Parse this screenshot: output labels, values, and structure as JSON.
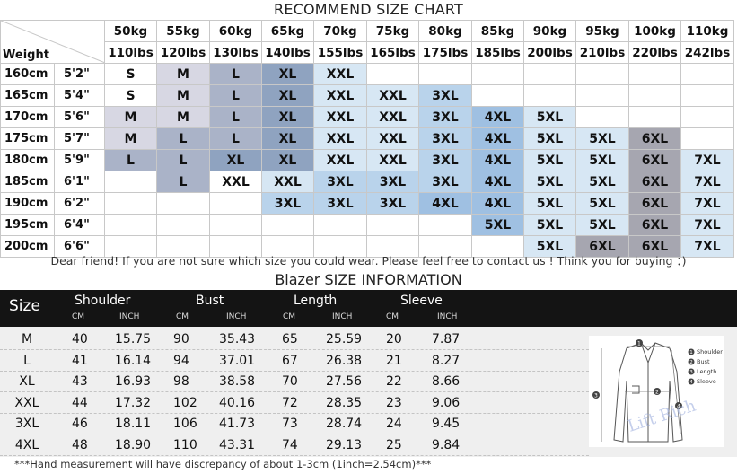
{
  "recommend_chart": {
    "title": "RECOMMEND SIZE CHART",
    "corner_label": "Weight",
    "weights_kg": [
      "50kg",
      "55kg",
      "60kg",
      "65kg",
      "70kg",
      "75kg",
      "80kg",
      "85kg",
      "90kg",
      "95kg",
      "100kg",
      "110kg"
    ],
    "weights_lbs": [
      "110lbs",
      "120lbs",
      "130lbs",
      "140lbs",
      "155lbs",
      "165lbs",
      "175lbs",
      "185lbs",
      "200lbs",
      "210lbs",
      "220lbs",
      "242lbs"
    ],
    "rows": [
      {
        "cm": "160cm",
        "ft": "5'2\"",
        "cells": [
          "S",
          "M",
          "L",
          "XL",
          "XXL",
          "",
          "",
          "",
          "",
          "",
          "",
          ""
        ]
      },
      {
        "cm": "165cm",
        "ft": "5'4\"",
        "cells": [
          "S",
          "M",
          "L",
          "XL",
          "XXL",
          "XXL",
          "3XL",
          "",
          "",
          "",
          "",
          ""
        ]
      },
      {
        "cm": "170cm",
        "ft": "5'6\"",
        "cells": [
          "M",
          "M",
          "L",
          "XL",
          "XXL",
          "XXL",
          "3XL",
          "4XL",
          "5XL",
          "",
          "",
          ""
        ]
      },
      {
        "cm": "175cm",
        "ft": "5'7\"",
        "cells": [
          "M",
          "L",
          "L",
          "XL",
          "XXL",
          "XXL",
          "3XL",
          "4XL",
          "5XL",
          "5XL",
          "6XL",
          ""
        ]
      },
      {
        "cm": "180cm",
        "ft": "5'9\"",
        "cells": [
          "L",
          "L",
          "XL",
          "XL",
          "XXL",
          "XXL",
          "3XL",
          "4XL",
          "5XL",
          "5XL",
          "6XL",
          "7XL"
        ]
      },
      {
        "cm": "185cm",
        "ft": "6'1\"",
        "cells": [
          "",
          "L",
          "XXL",
          "XXL",
          "3XL",
          "3XL",
          "3XL",
          "4XL",
          "5XL",
          "5XL",
          "6XL",
          "7XL"
        ]
      },
      {
        "cm": "190cm",
        "ft": "6'2\"",
        "cells": [
          "",
          "",
          "",
          "3XL",
          "3XL",
          "3XL",
          "4XL",
          "4XL",
          "5XL",
          "5XL",
          "6XL",
          "7XL"
        ]
      },
      {
        "cm": "195cm",
        "ft": "6'4\"",
        "cells": [
          "",
          "",
          "",
          "",
          "",
          "",
          "",
          "5XL",
          "5XL",
          "5XL",
          "6XL",
          "7XL"
        ]
      },
      {
        "cm": "200cm",
        "ft": "6'6\"",
        "cells": [
          "",
          "",
          "",
          "",
          "",
          "",
          "",
          "",
          "5XL",
          "6XL",
          "6XL",
          "7XL"
        ]
      }
    ],
    "colors": {
      "c1": "#d7d7e3",
      "c2": "#aab3c8",
      "c3": "#8fa3c0",
      "c4": "#d6e6f3",
      "c5": "#b9d3eb",
      "c6": "#9fc0e2",
      "c7": "#d7e7f4",
      "c8": "#a6a6b0"
    },
    "note": "Dear friend! If you are not sure which size you could wear. Please feel free to contact us ! Think you for buying ：)"
  },
  "blazer": {
    "title": "Blazer SIZE INFORMATION",
    "size_header": "Size",
    "groups": [
      "Shoulder",
      "Bust",
      "Length",
      "Sleeve"
    ],
    "unit_cm": "CM",
    "unit_inch": "INCH",
    "rows": [
      {
        "size": "M",
        "values": [
          "40",
          "15.75",
          "90",
          "35.43",
          "65",
          "25.59",
          "20",
          "7.87"
        ]
      },
      {
        "size": "L",
        "values": [
          "41",
          "16.14",
          "94",
          "37.01",
          "67",
          "26.38",
          "21",
          "8.27"
        ]
      },
      {
        "size": "XL",
        "values": [
          "43",
          "16.93",
          "98",
          "38.58",
          "70",
          "27.56",
          "22",
          "8.66"
        ]
      },
      {
        "size": "XXL",
        "values": [
          "44",
          "17.32",
          "102",
          "40.16",
          "72",
          "28.35",
          "23",
          "9.06"
        ]
      },
      {
        "size": "3XL",
        "values": [
          "46",
          "18.11",
          "106",
          "41.73",
          "73",
          "28.74",
          "24",
          "9.45"
        ]
      },
      {
        "size": "4XL",
        "values": [
          "48",
          "18.90",
          "110",
          "43.31",
          "74",
          "29.13",
          "25",
          "9.84"
        ]
      }
    ],
    "diagram_legend": [
      "Shoulder",
      "Bust",
      "Length",
      "Sleeve"
    ],
    "diagram_numbers": [
      "1",
      "2",
      "3",
      "4"
    ],
    "watermark": "Lift Rich",
    "note": "***Hand measurement will have discrepancy of about 1-3cm (1inch=2.54cm)***"
  }
}
